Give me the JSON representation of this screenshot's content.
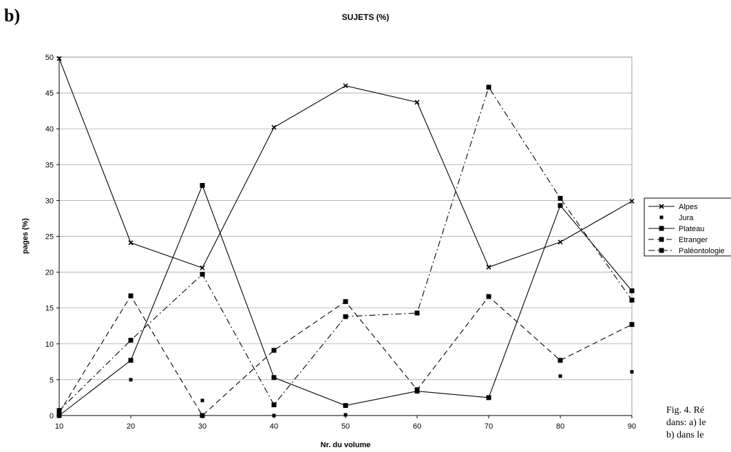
{
  "panel_label": "b)",
  "caption_lines": [
    "Fig. 4. Ré",
    "dans: a) le",
    "b) dans le"
  ],
  "chart_data": {
    "type": "line",
    "title": "SUJETS (%)",
    "xlabel": "Nr. du volume",
    "ylabel": "pages (%)",
    "x": [
      10,
      20,
      30,
      40,
      50,
      60,
      70,
      80,
      90
    ],
    "xlim": [
      10,
      90
    ],
    "ylim": [
      0,
      50
    ],
    "yticks": [
      0,
      5,
      10,
      15,
      20,
      25,
      30,
      35,
      40,
      45,
      50
    ],
    "grid": true,
    "legend_position": "right",
    "series": [
      {
        "name": "Alpes",
        "line": "solid",
        "marker": "x",
        "values": [
          49.8,
          24.1,
          20.6,
          40.2,
          46.0,
          43.7,
          20.7,
          24.2,
          29.9
        ]
      },
      {
        "name": "Jura",
        "line": "none",
        "marker": "small-square",
        "values": [
          0.5,
          5.0,
          2.1,
          0.0,
          0.1,
          null,
          null,
          5.5,
          6.1
        ]
      },
      {
        "name": "Plateau",
        "line": "solid",
        "marker": "square",
        "values": [
          0.0,
          7.7,
          32.1,
          5.3,
          1.4,
          3.4,
          2.5,
          29.3,
          17.4
        ]
      },
      {
        "name": "Etranger",
        "line": "dashed",
        "marker": "square",
        "values": [
          0.4,
          16.7,
          0.0,
          9.1,
          15.9,
          3.6,
          16.6,
          7.7,
          12.7
        ]
      },
      {
        "name": "Paléontologie",
        "line": "dashdot",
        "marker": "square",
        "values": [
          0.7,
          10.5,
          19.7,
          1.5,
          13.8,
          14.3,
          45.8,
          30.3,
          16.1
        ]
      }
    ]
  }
}
